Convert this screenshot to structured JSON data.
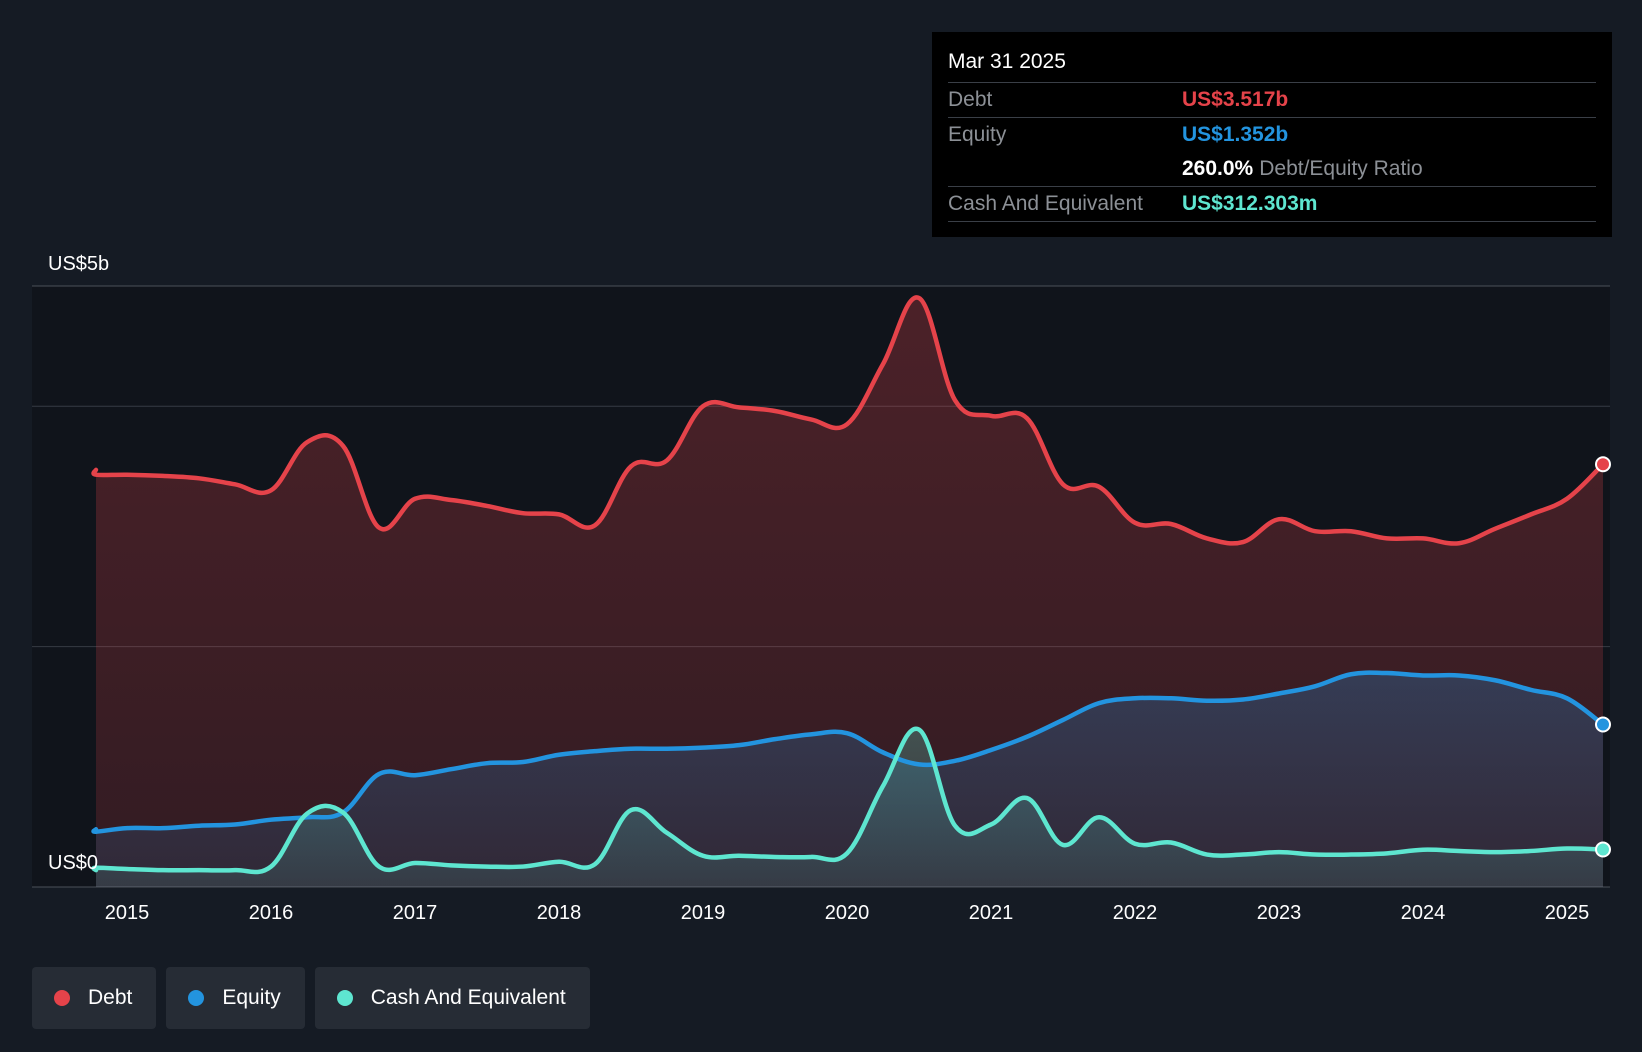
{
  "tooltip": {
    "date": "Mar 31 2025",
    "debt_label": "Debt",
    "debt_value": "US$3.517b",
    "equity_label": "Equity",
    "equity_value": "US$1.352b",
    "ratio_value": "260.0%",
    "ratio_label": "Debt/Equity Ratio",
    "cash_label": "Cash And Equivalent",
    "cash_value": "US$312.303m"
  },
  "legend": [
    {
      "label": "Debt",
      "color": "#e5434a"
    },
    {
      "label": "Equity",
      "color": "#2394df"
    },
    {
      "label": "Cash And Equivalent",
      "color": "#5ee6d0"
    }
  ],
  "chart_data": {
    "type": "area",
    "title": "",
    "xlabel": "",
    "ylabel": "",
    "y_top_label": "US$5b",
    "y_bottom_label": "US$0",
    "ylim": [
      0,
      5
    ],
    "xlim": [
      2014.56,
      2025.25
    ],
    "x_ticks": [
      "2015",
      "2016",
      "2017",
      "2018",
      "2019",
      "2020",
      "2021",
      "2022",
      "2023",
      "2024",
      "2025"
    ],
    "grid": true,
    "legend_position": "bottom-left",
    "series": [
      {
        "name": "Debt",
        "color": "#e5434a",
        "x": [
          2014.56,
          2014.75,
          2015.0,
          2015.25,
          2015.5,
          2015.75,
          2016.0,
          2016.25,
          2016.5,
          2016.75,
          2017.0,
          2017.25,
          2017.5,
          2017.75,
          2018.0,
          2018.25,
          2018.5,
          2018.75,
          2019.0,
          2019.25,
          2019.5,
          2019.75,
          2020.0,
          2020.25,
          2020.5,
          2020.75,
          2021.0,
          2021.25,
          2021.5,
          2021.75,
          2022.0,
          2022.25,
          2022.5,
          2022.75,
          2023.0,
          2023.25,
          2023.5,
          2023.75,
          2024.0,
          2024.25,
          2024.5,
          2024.75,
          2025.0,
          2025.25
        ],
        "values": [
          3.47,
          3.43,
          3.43,
          3.42,
          3.4,
          3.35,
          3.3,
          3.7,
          3.67,
          2.99,
          3.23,
          3.22,
          3.17,
          3.11,
          3.1,
          3.01,
          3.5,
          3.55,
          4.0,
          3.99,
          3.96,
          3.89,
          3.85,
          4.35,
          4.9,
          4.05,
          3.92,
          3.9,
          3.35,
          3.33,
          3.03,
          3.02,
          2.9,
          2.87,
          3.06,
          2.96,
          2.96,
          2.9,
          2.9,
          2.86,
          2.98,
          3.1,
          3.23,
          3.517
        ]
      },
      {
        "name": "Equity",
        "color": "#2394df",
        "x": [
          2014.56,
          2014.75,
          2015.0,
          2015.25,
          2015.5,
          2015.75,
          2016.0,
          2016.25,
          2016.5,
          2016.75,
          2017.0,
          2017.25,
          2017.5,
          2017.75,
          2018.0,
          2018.25,
          2018.5,
          2018.75,
          2019.0,
          2019.25,
          2019.5,
          2019.75,
          2020.0,
          2020.25,
          2020.5,
          2020.75,
          2021.0,
          2021.25,
          2021.5,
          2021.75,
          2022.0,
          2022.25,
          2022.5,
          2022.75,
          2023.0,
          2023.25,
          2023.5,
          2023.75,
          2024.0,
          2024.25,
          2024.5,
          2024.75,
          2025.0,
          2025.25
        ],
        "values": [
          0.48,
          0.46,
          0.49,
          0.49,
          0.51,
          0.52,
          0.56,
          0.58,
          0.62,
          0.94,
          0.93,
          0.98,
          1.03,
          1.04,
          1.1,
          1.13,
          1.15,
          1.15,
          1.16,
          1.18,
          1.23,
          1.27,
          1.28,
          1.12,
          1.02,
          1.05,
          1.14,
          1.25,
          1.39,
          1.53,
          1.57,
          1.57,
          1.55,
          1.56,
          1.61,
          1.67,
          1.77,
          1.78,
          1.76,
          1.76,
          1.72,
          1.64,
          1.57,
          1.352
        ]
      },
      {
        "name": "Cash And Equivalent",
        "color": "#5ee6d0",
        "x": [
          2014.56,
          2014.75,
          2015.0,
          2015.25,
          2015.5,
          2015.75,
          2016.0,
          2016.25,
          2016.5,
          2016.75,
          2017.0,
          2017.25,
          2017.5,
          2017.75,
          2018.0,
          2018.25,
          2018.5,
          2018.75,
          2019.0,
          2019.25,
          2019.5,
          2019.75,
          2020.0,
          2020.25,
          2020.5,
          2020.75,
          2021.0,
          2021.25,
          2021.5,
          2021.75,
          2022.0,
          2022.25,
          2022.5,
          2022.75,
          2023.0,
          2023.25,
          2023.5,
          2023.75,
          2024.0,
          2024.25,
          2024.5,
          2024.75,
          2025.0,
          2025.25
        ],
        "values": [
          0.14,
          0.16,
          0.15,
          0.14,
          0.14,
          0.14,
          0.17,
          0.61,
          0.62,
          0.17,
          0.2,
          0.18,
          0.17,
          0.17,
          0.21,
          0.19,
          0.64,
          0.45,
          0.26,
          0.26,
          0.25,
          0.25,
          0.28,
          0.84,
          1.31,
          0.51,
          0.52,
          0.74,
          0.35,
          0.58,
          0.36,
          0.37,
          0.27,
          0.27,
          0.29,
          0.27,
          0.27,
          0.28,
          0.31,
          0.3,
          0.29,
          0.3,
          0.32,
          0.312
        ]
      }
    ]
  }
}
